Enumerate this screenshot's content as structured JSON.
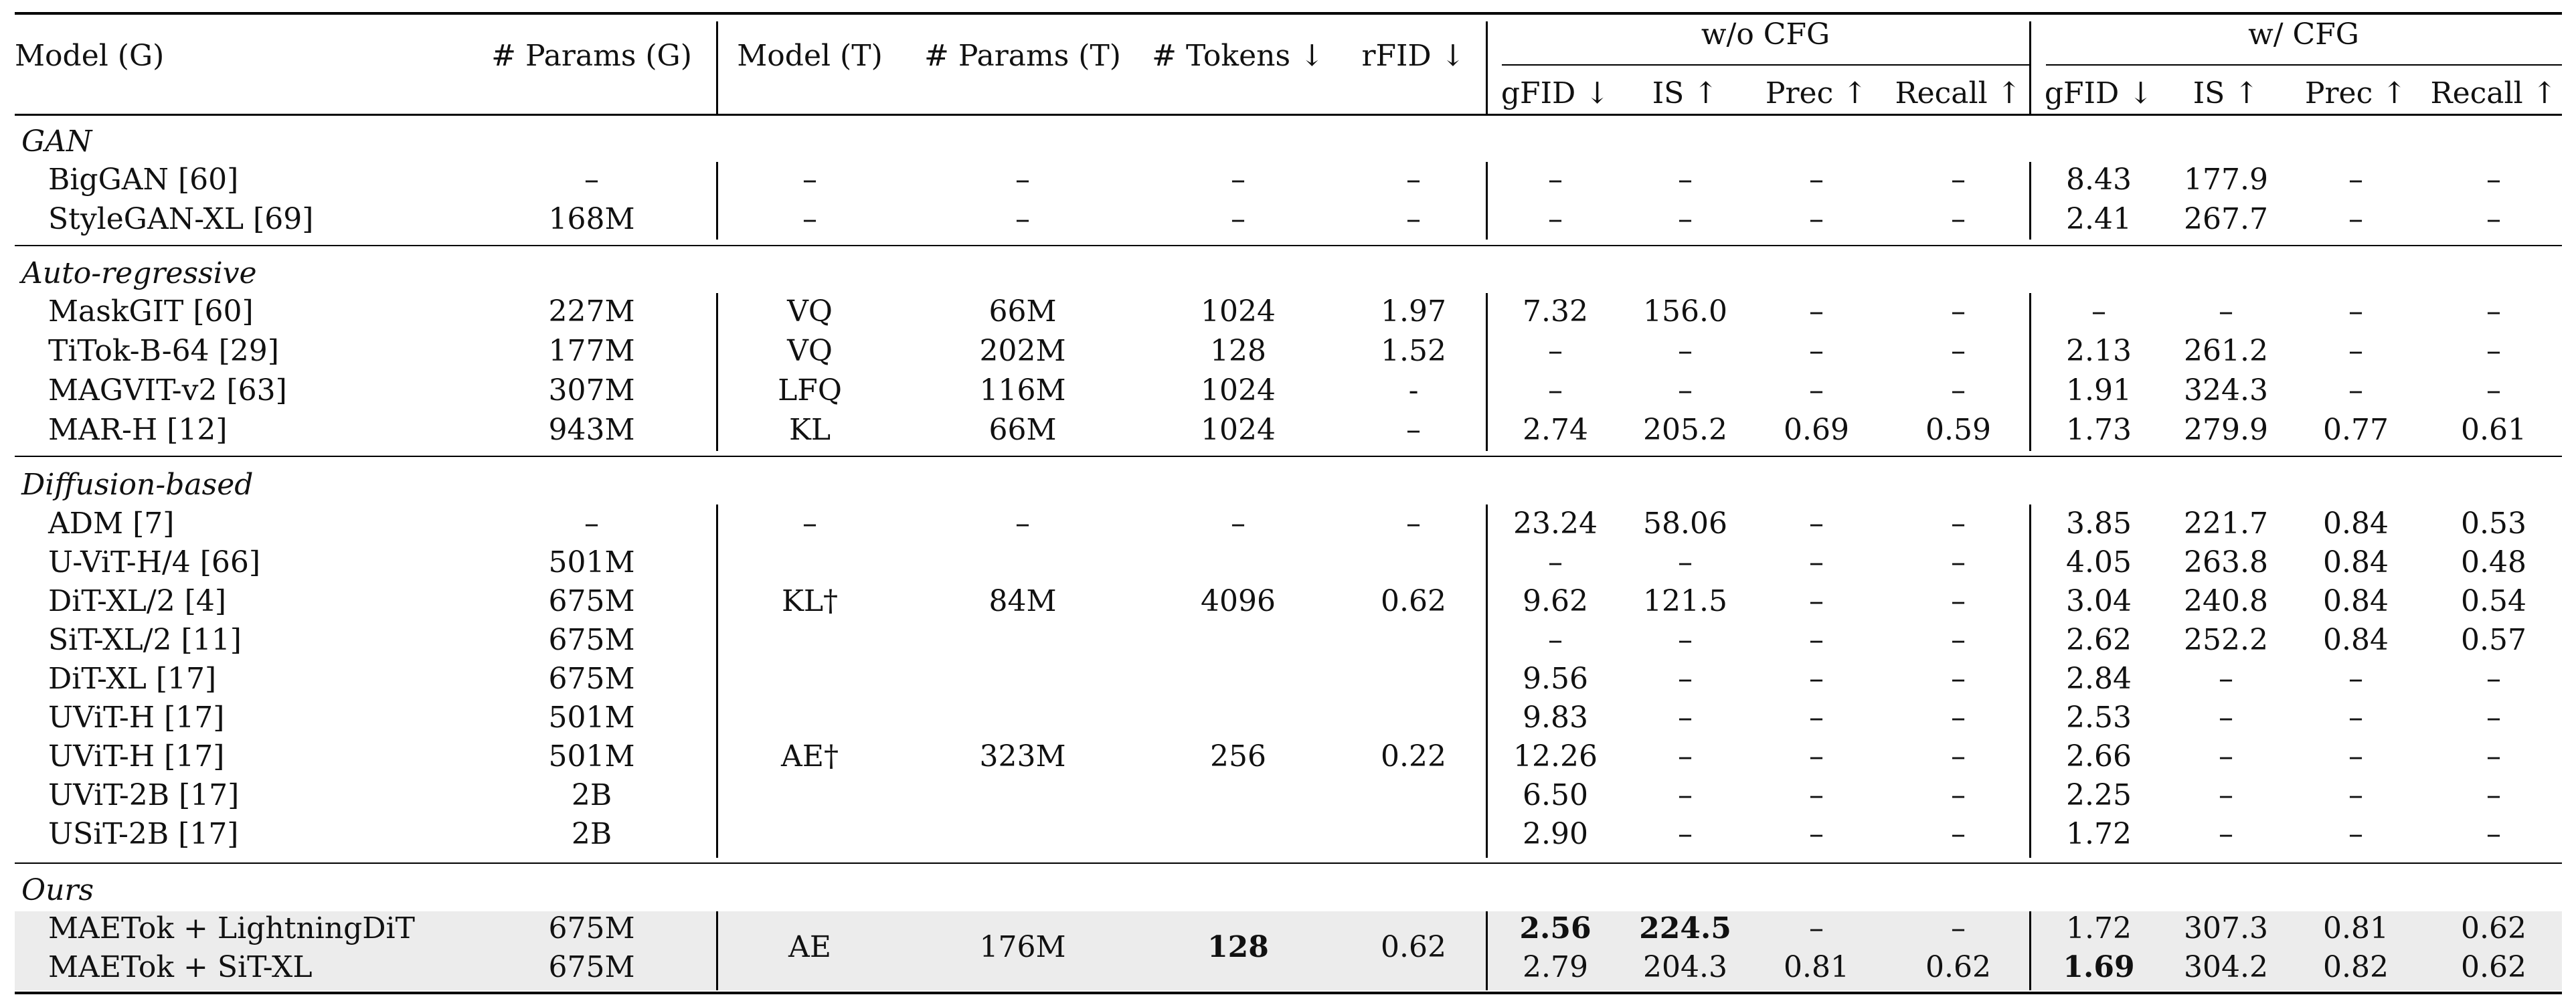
{
  "header": {
    "model_g": "Model (G)",
    "params_g": "# Params (G)",
    "model_t": "Model (T)",
    "params_t": "# Params (T)",
    "tokens": "# Tokens ↓",
    "rfid": "rFID ↓",
    "group_wo": "w/o CFG",
    "group_w": "w/ CFG",
    "gfid": "gFID ↓",
    "is": "IS ↑",
    "prec": "Prec ↑",
    "recall": "Recall ↑"
  },
  "sections": [
    {
      "title": "GAN",
      "rows": [
        {
          "model": "BigGAN [60]",
          "params": "–",
          "tok": "–",
          "tparams": "–",
          "ntok": "–",
          "rfid": "–",
          "wo": [
            "–",
            "–",
            "–",
            "–"
          ],
          "w": [
            "8.43",
            "177.9",
            "–",
            "–"
          ]
        },
        {
          "model": "StyleGAN-XL [69]",
          "params": "168M",
          "tok": "–",
          "tparams": "–",
          "ntok": "–",
          "rfid": "–",
          "wo": [
            "–",
            "–",
            "–",
            "–"
          ],
          "w": [
            "2.41",
            "267.7",
            "–",
            "–"
          ]
        }
      ]
    },
    {
      "title": "Auto-regressive",
      "rows": [
        {
          "model": "MaskGIT [60]",
          "params": "227M",
          "tok": "VQ",
          "tparams": "66M",
          "ntok": "1024",
          "rfid": "1.97",
          "wo": [
            "7.32",
            "156.0",
            "–",
            "–"
          ],
          "w": [
            "–",
            "–",
            "–",
            "–"
          ]
        },
        {
          "model": "TiTok-B-64 [29]",
          "params": "177M",
          "tok": "VQ",
          "tparams": "202M",
          "ntok": "128",
          "rfid": "1.52",
          "wo": [
            "–",
            "–",
            "–",
            "–"
          ],
          "w": [
            "2.13",
            "261.2",
            "–",
            "–"
          ]
        },
        {
          "model": "MAGVIT-v2 [63]",
          "params": "307M",
          "tok": "LFQ",
          "tparams": "116M",
          "ntok": "1024",
          "rfid": "-",
          "wo": [
            "–",
            "–",
            "–",
            "–"
          ],
          "w": [
            "1.91",
            "324.3",
            "–",
            "–"
          ]
        },
        {
          "model": "MAR-H [12]",
          "params": "943M",
          "tok": "KL",
          "tparams": "66M",
          "ntok": "1024",
          "rfid": "–",
          "wo": [
            "2.74",
            "205.2",
            "0.69",
            "0.59"
          ],
          "w": [
            "1.73",
            "279.9",
            "0.77",
            "0.61"
          ]
        }
      ]
    },
    {
      "title": "Diffusion-based",
      "rows": [
        {
          "model": "ADM [7]",
          "params": "–",
          "tok": "–",
          "tparams": "–",
          "ntok": "–",
          "rfid": "–",
          "wo": [
            "23.24",
            "58.06",
            "–",
            "–"
          ],
          "w": [
            "3.85",
            "221.7",
            "0.84",
            "0.53"
          ]
        },
        {
          "model": "U-ViT-H/4 [66]",
          "params": "501M",
          "wo": [
            "–",
            "–",
            "–",
            "–"
          ],
          "w": [
            "4.05",
            "263.8",
            "0.84",
            "0.48"
          ]
        },
        {
          "model": "DiT-XL/2 [4]",
          "params": "675M",
          "wo": [
            "9.62",
            "121.5",
            "–",
            "–"
          ],
          "w": [
            "3.04",
            "240.8",
            "0.84",
            "0.54"
          ]
        },
        {
          "model": "SiT-XL/2 [11]",
          "params": "675M",
          "wo": [
            "–",
            "–",
            "–",
            "–"
          ],
          "w": [
            "2.62",
            "252.2",
            "0.84",
            "0.57"
          ]
        },
        {
          "model": "DiT-XL [17]",
          "params": "675M",
          "wo": [
            "9.56",
            "–",
            "–",
            "–"
          ],
          "w": [
            "2.84",
            "–",
            "–",
            "–"
          ]
        },
        {
          "model": "UViT-H [17]",
          "params": "501M",
          "wo": [
            "9.83",
            "–",
            "–",
            "–"
          ],
          "w": [
            "2.53",
            "–",
            "–",
            "–"
          ]
        },
        {
          "model": "UViT-H [17]",
          "params": "501M",
          "wo": [
            "12.26",
            "–",
            "–",
            "–"
          ],
          "w": [
            "2.66",
            "–",
            "–",
            "–"
          ]
        },
        {
          "model": "UViT-2B [17]",
          "params": "2B",
          "wo": [
            "6.50",
            "–",
            "–",
            "–"
          ],
          "w": [
            "2.25",
            "–",
            "–",
            "–"
          ]
        },
        {
          "model": "USiT-2B [17]",
          "params": "2B",
          "wo": [
            "2.90",
            "–",
            "–",
            "–"
          ],
          "w": [
            "1.72",
            "–",
            "–",
            "–"
          ]
        }
      ],
      "merged": [
        {
          "tok": "KL†",
          "tparams": "84M",
          "ntok": "4096",
          "rfid": "0.62"
        },
        {
          "tok": "AE†",
          "tparams": "323M",
          "ntok": "256",
          "rfid": "0.22"
        }
      ]
    },
    {
      "title": "Ours",
      "rows": [
        {
          "model": "MAETok + LightningDiT",
          "params": "675M",
          "wo": [
            "2.56",
            "224.5",
            "–",
            "–"
          ],
          "w": [
            "1.72",
            "307.3",
            "0.81",
            "0.62"
          ]
        },
        {
          "model": "MAETok + SiT-XL",
          "params": "675M",
          "wo": [
            "2.79",
            "204.3",
            "0.81",
            "0.62"
          ],
          "w": [
            "1.69",
            "304.2",
            "0.82",
            "0.62"
          ]
        }
      ],
      "merged": [
        {
          "tok": "AE",
          "tparams": "176M",
          "ntok": "128",
          "rfid": "0.62"
        }
      ]
    }
  ]
}
